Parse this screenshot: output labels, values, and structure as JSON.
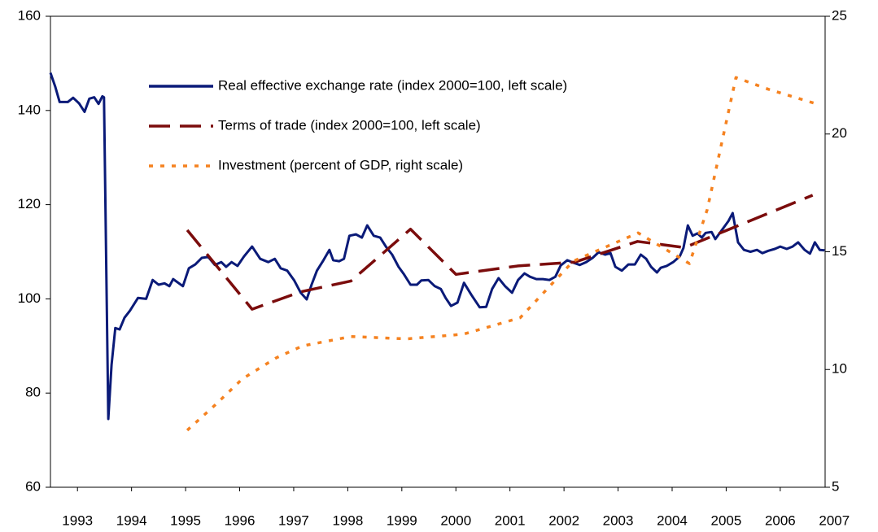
{
  "chart_data": {
    "type": "line",
    "xlim": [
      1992.5,
      2006.83
    ],
    "xticks": [
      1993,
      1994,
      1995,
      1996,
      1997,
      1998,
      1999,
      2000,
      2001,
      2002,
      2003,
      2004,
      2005,
      2006,
      2007
    ],
    "ylim": [
      60,
      160
    ],
    "yticks": [
      60,
      80,
      100,
      120,
      140,
      160
    ],
    "y2lim": [
      5,
      25
    ],
    "y2ticks": [
      5,
      10,
      15,
      20,
      25
    ],
    "legend": "upper left",
    "series": [
      {
        "name": "Real effective exchange rate (index 2000=100, left scale)",
        "color": "#0a1a78",
        "dash": "solid",
        "axis": "y",
        "x": [
          1992.5,
          1992.59,
          1992.67,
          1992.74,
          1992.82,
          1992.92,
          1993.03,
          1993.13,
          1993.22,
          1993.31,
          1993.39,
          1993.46,
          1993.49,
          1993.57,
          1993.63,
          1993.7,
          1993.78,
          1993.87,
          1993.97,
          1994.12,
          1994.27,
          1994.39,
          1994.5,
          1994.61,
          1994.7,
          1994.77,
          1994.95,
          1995.06,
          1995.18,
          1995.3,
          1995.42,
          1995.54,
          1995.66,
          1995.75,
          1995.85,
          1995.96,
          1996.08,
          1996.23,
          1996.38,
          1996.53,
          1996.65,
          1996.76,
          1996.88,
          1997.01,
          1997.13,
          1997.24,
          1997.33,
          1997.43,
          1997.55,
          1997.66,
          1997.73,
          1997.84,
          1997.93,
          1998.03,
          1998.15,
          1998.26,
          1998.36,
          1998.48,
          1998.6,
          1998.71,
          1998.82,
          1998.94,
          1999.04,
          1999.16,
          1999.28,
          1999.36,
          1999.49,
          1999.61,
          1999.72,
          1999.81,
          1999.91,
          2000.03,
          2000.15,
          2000.29,
          2000.44,
          2000.56,
          2000.67,
          2000.79,
          2000.91,
          2001.04,
          2001.15,
          2001.27,
          2001.37,
          2001.49,
          2001.61,
          2001.73,
          2001.84,
          2001.94,
          2002.06,
          2002.17,
          2002.29,
          2002.41,
          2002.53,
          2002.64,
          2002.76,
          2002.86,
          2002.95,
          2003.07,
          2003.19,
          2003.31,
          2003.42,
          2003.52,
          2003.61,
          2003.72,
          2003.79,
          2003.9,
          2004.02,
          2004.14,
          2004.21,
          2004.29,
          2004.38,
          2004.47,
          2004.55,
          2004.62,
          2004.73,
          2004.8,
          2004.92,
          2005.04,
          2005.12,
          2005.22,
          2005.33,
          2005.45,
          2005.57,
          2005.67,
          2005.78,
          2005.9,
          2006.0,
          2006.12,
          2006.23,
          2006.33,
          2006.45,
          2006.55,
          2006.64,
          2006.73,
          2006.82
        ],
        "values": [
          148,
          145,
          141.8,
          141.8,
          141.8,
          142.7,
          141.5,
          139.7,
          142.5,
          142.8,
          141.4,
          143,
          142.8,
          74.5,
          86,
          93.8,
          93.5,
          96,
          97.5,
          100.2,
          100,
          104,
          103,
          103.3,
          102.7,
          104.2,
          102.7,
          106.5,
          107.3,
          108.7,
          108.9,
          107.2,
          107.8,
          106.8,
          107.8,
          107,
          109,
          111.1,
          108.5,
          107.8,
          108.5,
          106.5,
          106,
          103.9,
          101.3,
          99.9,
          103,
          106,
          108.2,
          110.4,
          108.2,
          108,
          108.5,
          113.4,
          113.7,
          113,
          115.6,
          113.4,
          113,
          111,
          109.4,
          106.8,
          105.2,
          103,
          103,
          103.9,
          104,
          102.7,
          102.1,
          100.2,
          98.5,
          99.2,
          103.4,
          100.8,
          98.2,
          98.3,
          102.1,
          104.4,
          102.7,
          101.3,
          104,
          105.4,
          104.7,
          104.2,
          104.2,
          104,
          104.7,
          107.1,
          108.2,
          107.7,
          107.2,
          107.8,
          108.7,
          109.9,
          109.4,
          109.7,
          106.8,
          106,
          107.3,
          107.3,
          109.4,
          108.5,
          106.8,
          105.6,
          106.6,
          107,
          107.8,
          109,
          110.8,
          115.6,
          113.4,
          113.9,
          113,
          114,
          114.2,
          112.7,
          114.6,
          116.5,
          118.2,
          112,
          110.4,
          110,
          110.4,
          109.7,
          110.2,
          110.6,
          111.1,
          110.6,
          111.1,
          112,
          110.4,
          109.6,
          112,
          110.4,
          110.3
        ]
      },
      {
        "name": "Terms of trade (index 2000=100, left scale)",
        "color": "#7b0c0c",
        "dash": "dashed",
        "axis": "y",
        "x": [
          1995.03,
          1996.23,
          1997.13,
          1998.06,
          1999.16,
          2000.0,
          2001.15,
          2002.2,
          2003.36,
          2004.23,
          2006.6
        ],
        "values": [
          114.6,
          97.8,
          101.5,
          103.8,
          114.8,
          105.2,
          107,
          107.8,
          112.2,
          110.9,
          122
        ]
      },
      {
        "name": "Investment (percent of GDP, right scale)",
        "color": "#f58220",
        "dash": "dotted",
        "axis": "y2",
        "x": [
          1995.03,
          1995.55,
          1996.05,
          1996.68,
          1997.16,
          1998.06,
          1999.09,
          2000.14,
          2001.19,
          2002.17,
          2003.37,
          2004.32,
          2004.65,
          2005.18,
          2005.78,
          2006.64
        ],
        "values": [
          7.42,
          8.5,
          9.6,
          10.5,
          11.0,
          11.4,
          11.3,
          11.5,
          12.2,
          14.6,
          15.8,
          14.5,
          16.8,
          22.4,
          21.9,
          21.3
        ]
      }
    ]
  }
}
